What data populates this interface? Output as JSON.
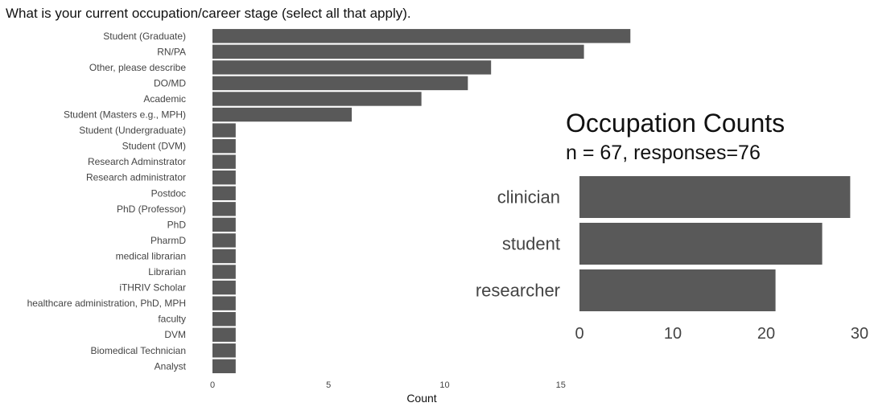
{
  "chart_data": [
    {
      "type": "bar",
      "orientation": "horizontal",
      "title": "What is your current occupation/career stage (select all that apply).",
      "xlabel": "Count",
      "ylabel": "",
      "xlim": [
        0,
        16.5
      ],
      "xticks": [
        0,
        5,
        10,
        15
      ],
      "grid": false,
      "bar_color": "#595959",
      "categories": [
        "Student (Graduate)",
        "RN/PA",
        "Other, please describe",
        "DO/MD",
        "Academic",
        "Student (Masters e.g., MPH)",
        "Student (Undergraduate)",
        "Student (DVM)",
        "Research Adminstrator",
        "Research administrator",
        "Postdoc",
        "PhD (Professor)",
        "PhD",
        "PharmD",
        "medical librarian",
        "Librarian",
        "iTHRIV Scholar",
        "healthcare administration, PhD, MPH",
        "faculty",
        "DVM",
        "Biomedical Technician",
        "Analyst"
      ],
      "values": [
        18,
        16,
        12,
        11,
        9,
        6,
        1,
        1,
        1,
        1,
        1,
        1,
        1,
        1,
        1,
        1,
        1,
        1,
        1,
        1,
        1,
        1
      ]
    },
    {
      "type": "bar",
      "orientation": "horizontal",
      "title": "Occupation Counts",
      "subtitle": "n = 67, responses=76",
      "xlabel": "",
      "ylabel": "",
      "xlim": [
        0,
        30
      ],
      "xticks": [
        0,
        10,
        20,
        30
      ],
      "grid": false,
      "bar_color": "#595959",
      "categories": [
        "clinician",
        "student",
        "researcher"
      ],
      "values": [
        29,
        26,
        21
      ]
    }
  ]
}
